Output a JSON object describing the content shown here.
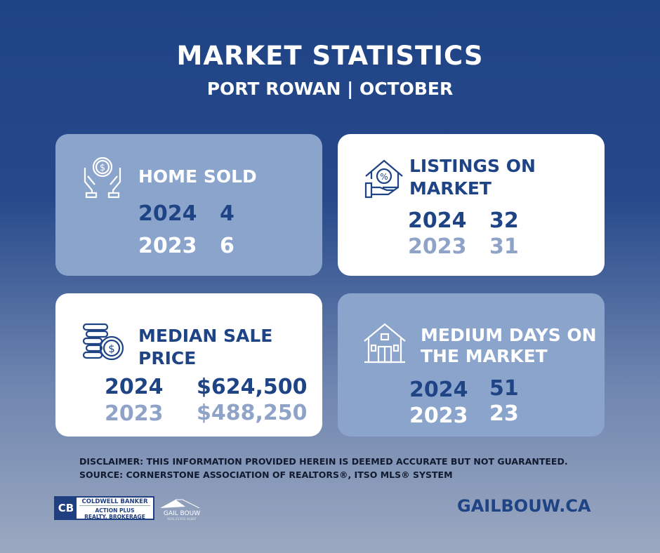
{
  "header": {
    "title": "MARKET STATISTICS",
    "subtitle": "PORT ROWAN | OCTOBER"
  },
  "cards": [
    {
      "title": "HOME SOLD",
      "icon": "hands-coin-icon",
      "rows": [
        {
          "year": "2024",
          "value": "4"
        },
        {
          "year": "2023",
          "value": "6"
        }
      ]
    },
    {
      "title_line1": "LISTINGS ON",
      "title_line2": "MARKET",
      "icon": "house-percent-icon",
      "rows": [
        {
          "year": "2024",
          "value": "32"
        },
        {
          "year": "2023",
          "value": "31"
        }
      ]
    },
    {
      "title_line1": "MEDIAN SALE",
      "title_line2": "PRICE",
      "icon": "coins-dollar-icon",
      "rows": [
        {
          "year": "2024",
          "value": "$624,500"
        },
        {
          "year": "2023",
          "value": "$488,250"
        }
      ]
    },
    {
      "title_line1": "MEDIUM DAYS ON",
      "title_line2": "THE MARKET",
      "icon": "house-icon",
      "rows": [
        {
          "year": "2024",
          "value": "51"
        },
        {
          "year": "2023",
          "value": "23"
        }
      ]
    }
  ],
  "footer": {
    "disclaimer": "DISCLAIMER: THIS INFORMATION PROVIDED HEREIN IS DEEMED ACCURATE BUT NOT GUARANTEED.",
    "source": "SOURCE: CORNERSTONE ASSOCIATION OF REALTORS®, ITSO MLS® SYSTEM",
    "brokerage_line1": "COLDWELL BANKER",
    "brokerage_line2": "ACTION PLUS",
    "brokerage_line3": "REALTY, BROKERAGE",
    "agent_logo": "GAIL BOUW",
    "agent_tagline": "REAL ESTATE AGENT",
    "website": "GAILBOUW.CA"
  },
  "colors": {
    "dark_blue": "#1f4486",
    "light_card": "#8ba4cc",
    "muted_text": "#8fa3c8"
  }
}
